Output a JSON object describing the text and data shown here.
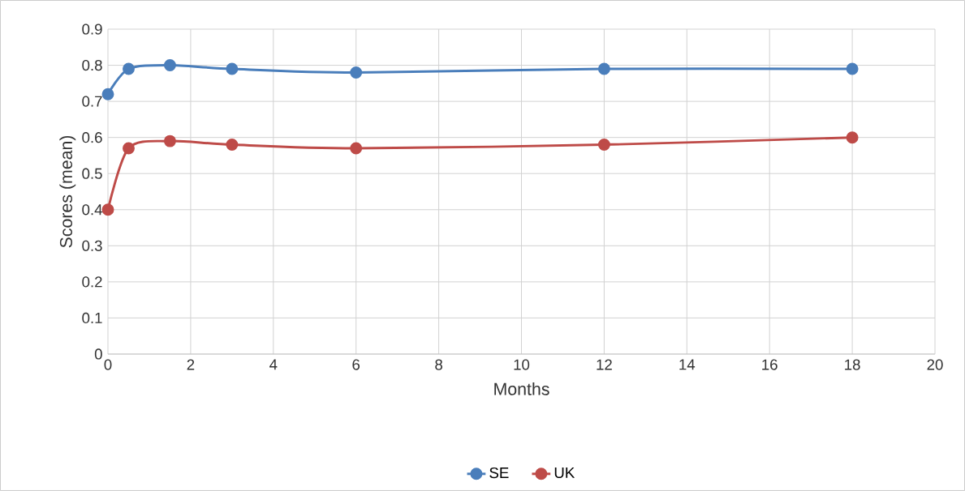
{
  "chart_data": {
    "type": "line",
    "xlabel": "Months",
    "ylabel": "Scores (mean)",
    "x": [
      0,
      0.5,
      1.5,
      3,
      6,
      12,
      18
    ],
    "series": [
      {
        "name": "SE",
        "color": "#4a7ebb",
        "values": [
          0.72,
          0.79,
          0.8,
          0.79,
          0.78,
          0.79,
          0.79
        ]
      },
      {
        "name": "UK",
        "color": "#be4b48",
        "values": [
          0.4,
          0.57,
          0.59,
          0.58,
          0.57,
          0.58,
          0.6
        ]
      }
    ],
    "xlim": [
      0,
      20
    ],
    "xticks": [
      0,
      2,
      4,
      6,
      8,
      10,
      12,
      14,
      16,
      18,
      20
    ],
    "ylim": [
      0,
      0.9
    ],
    "yticks": [
      0,
      0.1,
      0.2,
      0.3,
      0.4,
      0.5,
      0.6,
      0.7,
      0.8,
      0.9
    ],
    "grid": true,
    "legend": "bottom",
    "marker": "circle",
    "line_style": "solid"
  }
}
